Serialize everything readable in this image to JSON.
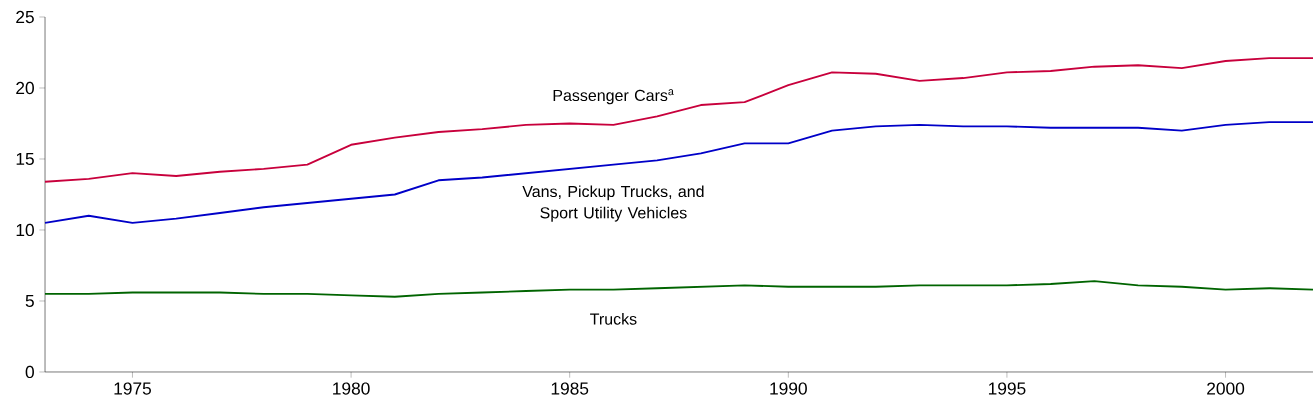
{
  "chart_data": {
    "type": "line",
    "x": [
      1973,
      1974,
      1975,
      1976,
      1977,
      1978,
      1979,
      1980,
      1981,
      1982,
      1983,
      1984,
      1985,
      1986,
      1987,
      1988,
      1989,
      1990,
      1991,
      1992,
      1993,
      1994,
      1995,
      1996,
      1997,
      1998,
      1999,
      2000,
      2001,
      2002
    ],
    "series": [
      {
        "name": "Passenger Cars$^{a}$",
        "color": "#c8003c",
        "values": [
          13.4,
          13.6,
          14.0,
          13.8,
          14.1,
          14.3,
          14.6,
          16.0,
          16.5,
          16.9,
          17.1,
          17.4,
          17.5,
          17.4,
          18.0,
          18.8,
          19.0,
          20.2,
          21.1,
          21.0,
          20.5,
          20.7,
          21.1,
          21.2,
          21.5,
          21.6,
          21.4,
          21.9,
          22.1,
          22.1
        ]
      },
      {
        "name": "Vans, Pickup Trucks, and Sport Utility Vehicles",
        "color": "#0000c8",
        "values": [
          10.5,
          11.0,
          10.5,
          10.8,
          11.2,
          11.6,
          11.9,
          12.2,
          12.5,
          13.5,
          13.7,
          14.0,
          14.3,
          14.6,
          14.9,
          15.4,
          16.1,
          16.1,
          17.0,
          17.3,
          17.4,
          17.3,
          17.3,
          17.2,
          17.2,
          17.2,
          17.0,
          17.4,
          17.6,
          17.6
        ]
      },
      {
        "name": "Trucks",
        "color": "#006400",
        "values": [
          5.5,
          5.5,
          5.6,
          5.6,
          5.6,
          5.5,
          5.5,
          5.4,
          5.3,
          5.5,
          5.6,
          5.7,
          5.8,
          5.8,
          5.9,
          6.0,
          6.1,
          6.0,
          6.0,
          6.0,
          6.1,
          6.1,
          6.1,
          6.2,
          6.4,
          6.1,
          6.0,
          5.8,
          5.9,
          5.8
        ]
      }
    ],
    "xlim": [
      1973,
      2002
    ],
    "ylim": [
      0,
      25
    ],
    "xticks": [
      1975,
      1980,
      1985,
      1990,
      1995,
      2000
    ],
    "yticks": [
      0,
      5,
      10,
      15,
      20,
      25
    ]
  }
}
